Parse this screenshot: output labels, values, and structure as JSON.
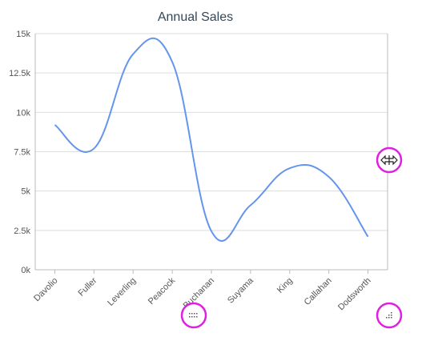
{
  "chart_data": {
    "type": "line",
    "title": "Annual Sales",
    "categories": [
      "Davolio",
      "Fuller",
      "Leverling",
      "Peacock",
      "Buchanan",
      "Suyama",
      "King",
      "Callahan",
      "Dodsworth"
    ],
    "series": [
      {
        "values": [
          9200,
          7700,
          13700,
          13200,
          2450,
          4100,
          6450,
          5900,
          2100
        ],
        "color": "#6495ed"
      }
    ],
    "ylim": [
      0,
      15000
    ],
    "yticks": [
      {
        "value": 0,
        "label": "0k"
      },
      {
        "value": 2500,
        "label": "2.5k"
      },
      {
        "value": 5000,
        "label": "5k"
      },
      {
        "value": 7500,
        "label": "7.5k"
      },
      {
        "value": 10000,
        "label": "10k"
      },
      {
        "value": 12500,
        "label": "12.5k"
      },
      {
        "value": 15000,
        "label": "15k"
      }
    ],
    "grid": true,
    "legend": "none"
  },
  "handles": {
    "right_edge": "horizontal-resize-handle",
    "bottom_edge": "vertical-resize-handle",
    "corner": "corner-resize-handle",
    "highlight_color": "#e020e0"
  }
}
